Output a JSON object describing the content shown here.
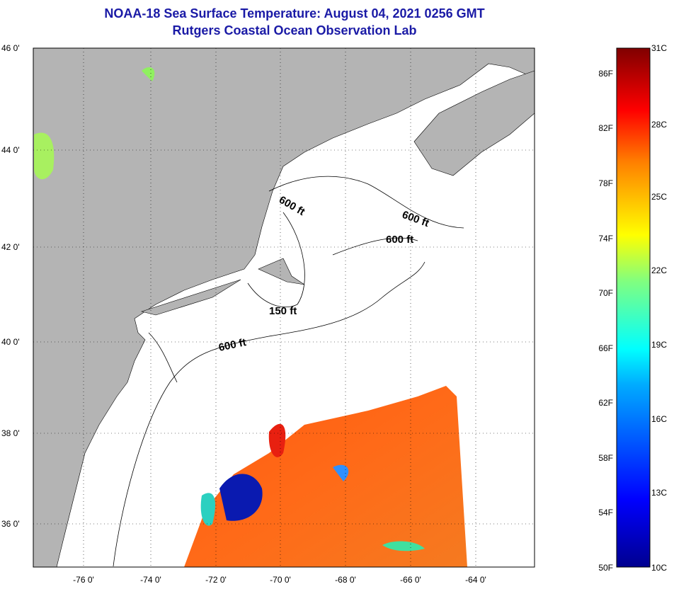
{
  "title": "NOAA-18 Sea Surface Temperature:  August 04, 2021 0256 GMT",
  "subtitle": "Rutgers Coastal Ocean Observation Lab",
  "map": {
    "lat_labels": [
      "46 0'",
      "44 0'",
      "42 0'",
      "40 0'",
      "38 0'",
      "36 0'"
    ],
    "lon_labels": [
      "-76 0'",
      "-74 0'",
      "-72 0'",
      "-70 0'",
      "-68 0'",
      "-66 0'",
      "-64 0'"
    ],
    "contour_labels": [
      "600 ft",
      "600 ft",
      "600 ft",
      "150 ft",
      "600 ft"
    ],
    "land_color": "#b4b4b4"
  },
  "colorbar": {
    "f_labels": [
      "86F",
      "82F",
      "78F",
      "74F",
      "70F",
      "66F",
      "62F",
      "58F",
      "54F",
      "50F"
    ],
    "c_labels": [
      "31C",
      "28C",
      "25C",
      "22C",
      "19C",
      "16C",
      "13C",
      "10C"
    ],
    "range_c": [
      10,
      31
    ]
  }
}
